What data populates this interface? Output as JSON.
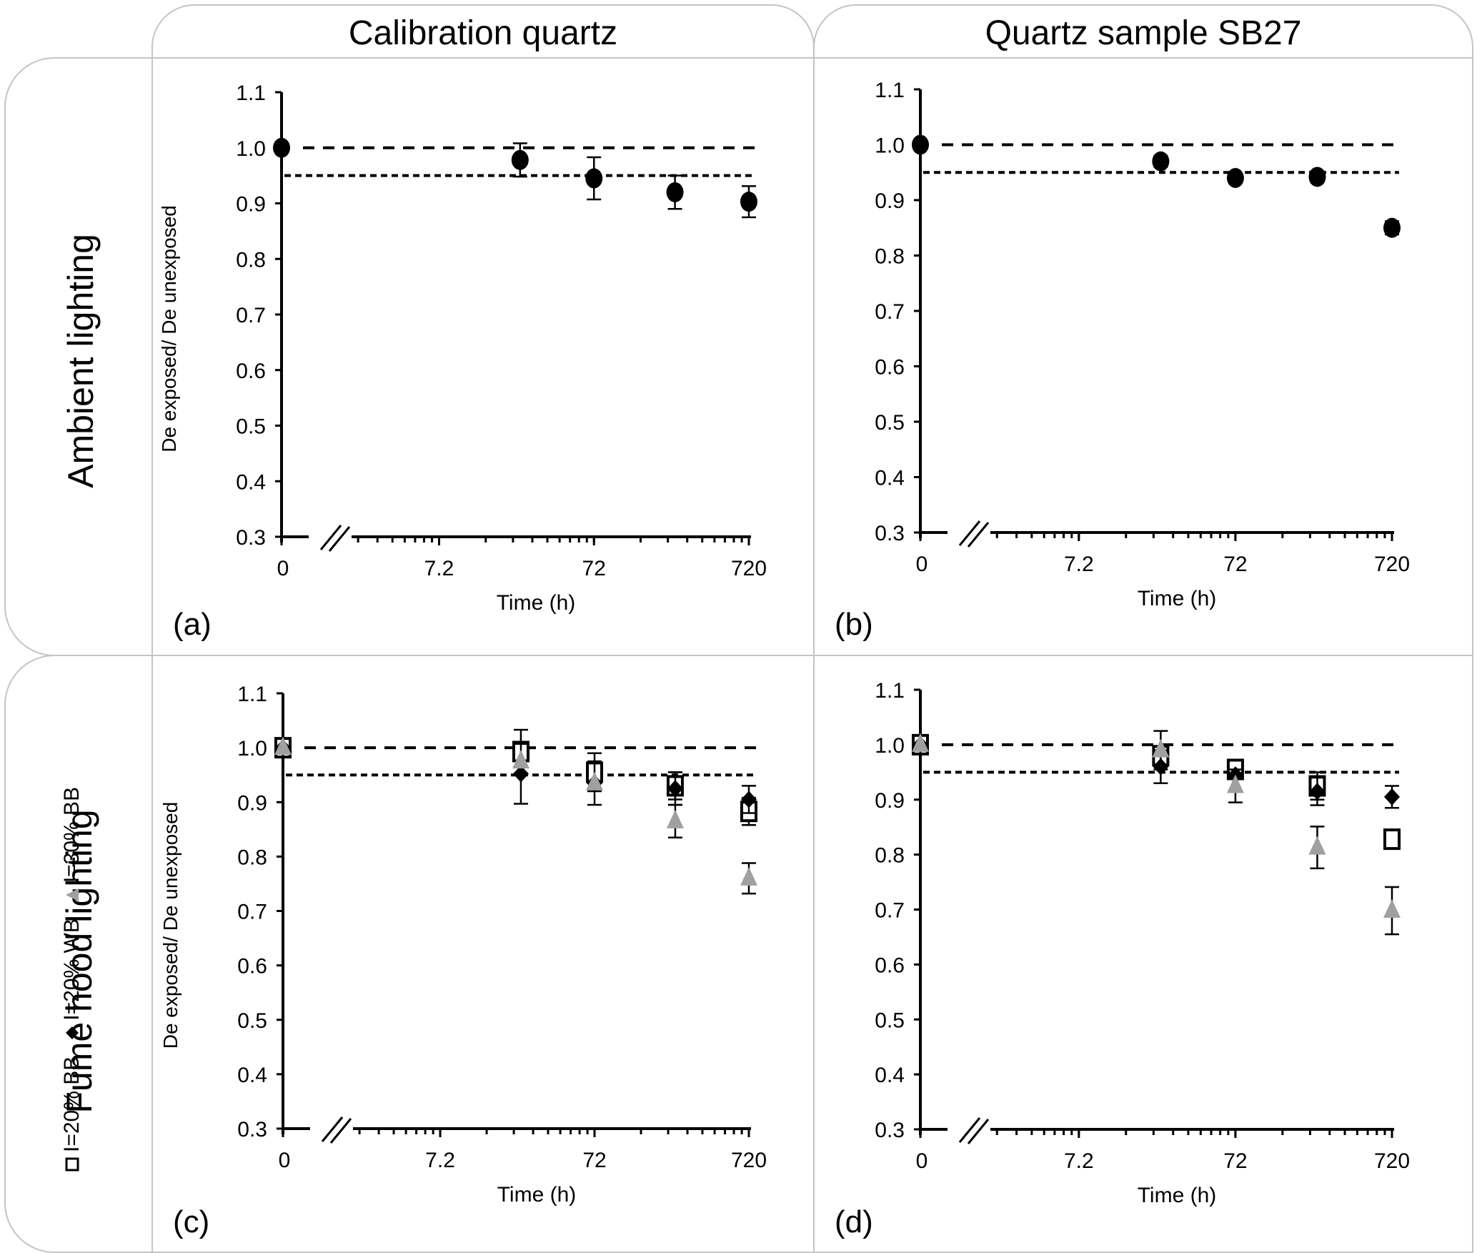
{
  "column_headers": [
    "Calibration quartz",
    "Quartz sample SB27"
  ],
  "row_headers": [
    "Ambient lighting",
    "Fume hood lighting"
  ],
  "legend": [
    {
      "label": "I=20% BB",
      "marker": "open-square",
      "color": "#000000"
    },
    {
      "label": "I=20% WB",
      "marker": "filled-diamond",
      "color": "#000000"
    },
    {
      "label": "I=30% BB",
      "marker": "filled-triangle",
      "color": "#a0a0a0"
    }
  ],
  "chart_data": [
    {
      "panel": "(a)",
      "type": "scatter",
      "column": "Calibration quartz",
      "row": "Ambient lighting",
      "xlabel": "Time (h)",
      "ylabel": "De exposed/ De unexposed",
      "x_scale": "log with axis break",
      "x_ticks": [
        "0",
        "7.2",
        "72",
        "720"
      ],
      "ylim": [
        0.3,
        1.1
      ],
      "y_ticks": [
        "0.3",
        "0.4",
        "0.5",
        "0.6",
        "0.7",
        "0.8",
        "0.9",
        "1.0",
        "1.1"
      ],
      "reference_lines": [
        {
          "y": 1.0,
          "style": "dashed"
        },
        {
          "y": 0.95,
          "style": "dotted"
        }
      ],
      "x": [
        0,
        24,
        72,
        240,
        720
      ],
      "series": [
        {
          "name": "Ambient",
          "marker": "filled-circle",
          "color": "#000000",
          "values": [
            1.0,
            0.978,
            0.945,
            0.92,
            0.903
          ],
          "errors": [
            0,
            0.03,
            0.038,
            0.03,
            0.028
          ]
        }
      ]
    },
    {
      "panel": "(b)",
      "type": "scatter",
      "column": "Quartz sample SB27",
      "row": "Ambient lighting",
      "xlabel": "Time (h)",
      "ylabel": "",
      "x_scale": "log with axis break",
      "x_ticks": [
        "0",
        "7.2",
        "72",
        "720"
      ],
      "ylim": [
        0.3,
        1.1
      ],
      "y_ticks": [
        "0.3",
        "0.4",
        "0.5",
        "0.6",
        "0.7",
        "0.8",
        "0.9",
        "1.0",
        "1.1"
      ],
      "reference_lines": [
        {
          "y": 1.0,
          "style": "dashed"
        },
        {
          "y": 0.95,
          "style": "dotted"
        }
      ],
      "x": [
        0,
        24,
        72,
        240,
        720
      ],
      "series": [
        {
          "name": "Ambient",
          "marker": "filled-circle",
          "color": "#000000",
          "values": [
            1.0,
            0.97,
            0.94,
            0.942,
            0.85
          ],
          "errors": [
            0,
            0.01,
            0.008,
            0.01,
            0.012
          ]
        }
      ]
    },
    {
      "panel": "(c)",
      "type": "scatter",
      "column": "Calibration quartz",
      "row": "Fume hood lighting",
      "xlabel": "Time (h)",
      "ylabel": "De exposed/ De unexposed",
      "x_scale": "log with axis break",
      "x_ticks": [
        "0",
        "7.2",
        "72",
        "720"
      ],
      "ylim": [
        0.3,
        1.1
      ],
      "y_ticks": [
        "0.3",
        "0.4",
        "0.5",
        "0.6",
        "0.7",
        "0.8",
        "0.9",
        "1.0",
        "1.1"
      ],
      "reference_lines": [
        {
          "y": 1.0,
          "style": "dashed"
        },
        {
          "y": 0.95,
          "style": "dotted"
        }
      ],
      "x": [
        0,
        24,
        72,
        240,
        720
      ],
      "series": [
        {
          "name": "I=20% BB",
          "marker": "open-square",
          "color": "#000000",
          "values": [
            1.0,
            0.993,
            0.955,
            0.93,
            0.883
          ],
          "errors": [
            0,
            0.04,
            0.035,
            0.025,
            0.025
          ]
        },
        {
          "name": "I=20% WB",
          "marker": "filled-diamond",
          "color": "#000000",
          "values": [
            1.0,
            0.952,
            0.935,
            0.925,
            0.905
          ],
          "errors": [
            0,
            0.055,
            0.04,
            0.03,
            0.025
          ]
        },
        {
          "name": "I=30% BB",
          "marker": "filled-triangle",
          "color": "#a0a0a0",
          "values": [
            1.0,
            0.975,
            0.935,
            0.865,
            0.76
          ],
          "errors": [
            0,
            0.0,
            0.0,
            0.03,
            0.028
          ]
        }
      ]
    },
    {
      "panel": "(d)",
      "type": "scatter",
      "column": "Quartz sample SB27",
      "row": "Fume hood lighting",
      "xlabel": "Time (h)",
      "ylabel": "",
      "x_scale": "log with axis break",
      "x_ticks": [
        "0",
        "7.2",
        "72",
        "720"
      ],
      "ylim": [
        0.3,
        1.1
      ],
      "y_ticks": [
        "0.3",
        "0.4",
        "0.5",
        "0.6",
        "0.7",
        "0.8",
        "0.9",
        "1.0",
        "1.1"
      ],
      "reference_lines": [
        {
          "y": 1.0,
          "style": "dashed"
        },
        {
          "y": 0.95,
          "style": "dotted"
        }
      ],
      "x": [
        0,
        24,
        72,
        240,
        720
      ],
      "series": [
        {
          "name": "I=20% BB",
          "marker": "open-square",
          "color": "#000000",
          "values": [
            1.0,
            0.98,
            0.955,
            0.925,
            0.828
          ],
          "errors": [
            0,
            0.0,
            0.012,
            0.025,
            0.0
          ]
        },
        {
          "name": "I=20% WB",
          "marker": "filled-diamond",
          "color": "#000000",
          "values": [
            1.0,
            0.96,
            0.945,
            0.915,
            0.905
          ],
          "errors": [
            0,
            0.03,
            0.0,
            0.025,
            0.02
          ]
        },
        {
          "name": "I=30% BB",
          "marker": "filled-triangle",
          "color": "#a0a0a0",
          "values": [
            1.0,
            0.99,
            0.925,
            0.813,
            0.698
          ],
          "errors": [
            0,
            0.035,
            0.03,
            0.038,
            0.043
          ]
        }
      ]
    }
  ]
}
